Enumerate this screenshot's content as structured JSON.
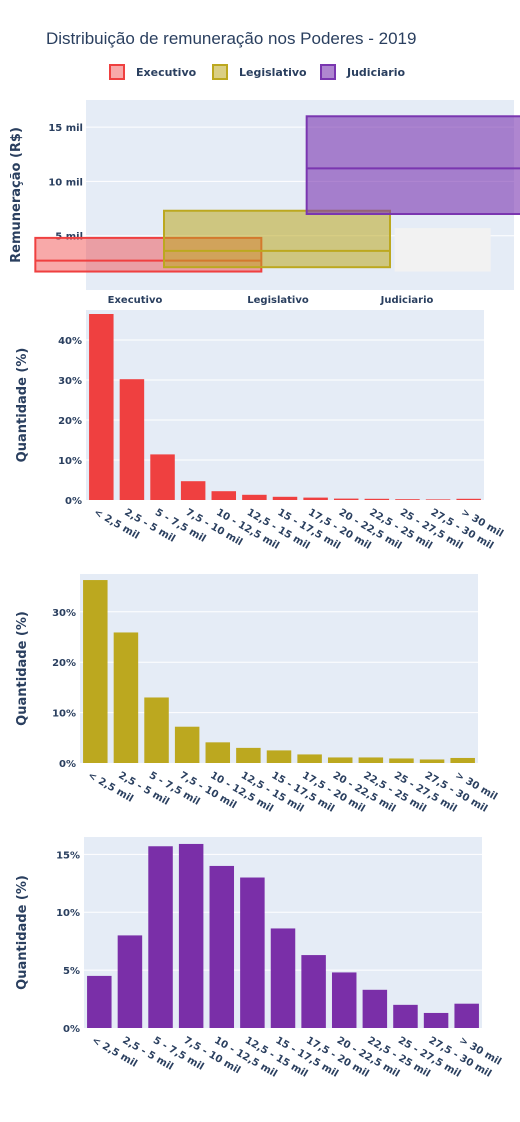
{
  "chart_data": [
    {
      "type": "box",
      "title": "Distribuição de remuneração nos Poderes - 2019",
      "ylabel": "Remuneração (R$)",
      "ylim": [
        0,
        17500
      ],
      "yticks": [
        5000,
        10000,
        15000
      ],
      "ytick_labels": [
        "5 mil",
        "10 mil",
        "15 mil"
      ],
      "categories": [
        "Executivo",
        "Legislativo",
        "Judiciario"
      ],
      "legend_position": "top",
      "series": [
        {
          "name": "Executivo",
          "color": "#ef4040",
          "fill": "rgba(239,64,64,0.45)",
          "q1": 1700,
          "median": 2700,
          "q3": 4800
        },
        {
          "name": "Legislativo",
          "color": "#bca81f",
          "fill": "rgba(188,168,31,0.55)",
          "q1": 2100,
          "median": 3600,
          "q3": 7300
        },
        {
          "name": "Judiciario",
          "color": "#7a36b0",
          "fill": "rgba(122,54,176,0.6)",
          "q1": 7000,
          "median": 11200,
          "q3": 16000
        }
      ]
    },
    {
      "type": "bar",
      "series_name": "Executivo",
      "color": "#ef4040",
      "ylabel": "Quantidade (%)",
      "ylim": [
        0,
        47.5
      ],
      "yticks": [
        0,
        10,
        20,
        30,
        40
      ],
      "ytick_labels": [
        "0%",
        "10%",
        "20%",
        "30%",
        "40%"
      ],
      "categories": [
        "< 2,5 mil",
        "2,5 - 5 mil",
        "5 - 7,5 mil",
        "7,5 - 10 mil",
        "10 - 12,5 mil",
        "12,5 - 15 mil",
        "15 - 17,5 mil",
        "17,5 - 20 mil",
        "20 - 22,5 mil",
        "22,5 - 25 mil",
        "25 - 27,5 mil",
        "27,5 - 30 mil",
        "> 30 mil"
      ],
      "values": [
        46.5,
        30.2,
        11.4,
        4.7,
        2.2,
        1.3,
        0.8,
        0.6,
        0.35,
        0.3,
        0.2,
        0.15,
        0.3
      ]
    },
    {
      "type": "bar",
      "series_name": "Legislativo",
      "color": "#bca81f",
      "ylabel": "Quantidade (%)",
      "ylim": [
        0,
        37.5
      ],
      "yticks": [
        0,
        10,
        20,
        30
      ],
      "ytick_labels": [
        "0%",
        "10%",
        "20%",
        "30%"
      ],
      "categories": [
        "< 2,5 mil",
        "2,5 - 5 mil",
        "5 - 7,5 mil",
        "7,5 - 10 mil",
        "10 - 12,5 mil",
        "12,5 - 15 mil",
        "15 - 17,5 mil",
        "17,5 - 20 mil",
        "20 - 22,5 mil",
        "22,5 - 25 mil",
        "25 - 27,5 mil",
        "27,5 - 30 mil",
        "> 30 mil"
      ],
      "values": [
        36.3,
        25.9,
        13.0,
        7.2,
        4.1,
        3.0,
        2.5,
        1.7,
        1.1,
        1.1,
        0.9,
        0.7,
        1.0
      ]
    },
    {
      "type": "bar",
      "series_name": "Judiciario",
      "color": "#7a2fa8",
      "ylabel": "Quantidade (%)",
      "ylim": [
        0,
        16.5
      ],
      "yticks": [
        0,
        5,
        10,
        15
      ],
      "ytick_labels": [
        "0%",
        "5%",
        "10%",
        "15%"
      ],
      "categories": [
        "< 2,5 mil",
        "2,5 - 5 mil",
        "5 - 7,5 mil",
        "7,5 - 10 mil",
        "10 - 12,5 mil",
        "12,5 - 15 mil",
        "15 - 17,5 mil",
        "17,5 - 20 mil",
        "20 - 22,5 mil",
        "22,5 - 25 mil",
        "25 - 27,5 mil",
        "27,5 - 30 mil",
        "> 30 mil"
      ],
      "values": [
        4.5,
        8.0,
        15.7,
        15.9,
        14.0,
        13.0,
        8.6,
        6.3,
        4.8,
        3.3,
        2.0,
        1.3,
        2.1
      ]
    }
  ]
}
